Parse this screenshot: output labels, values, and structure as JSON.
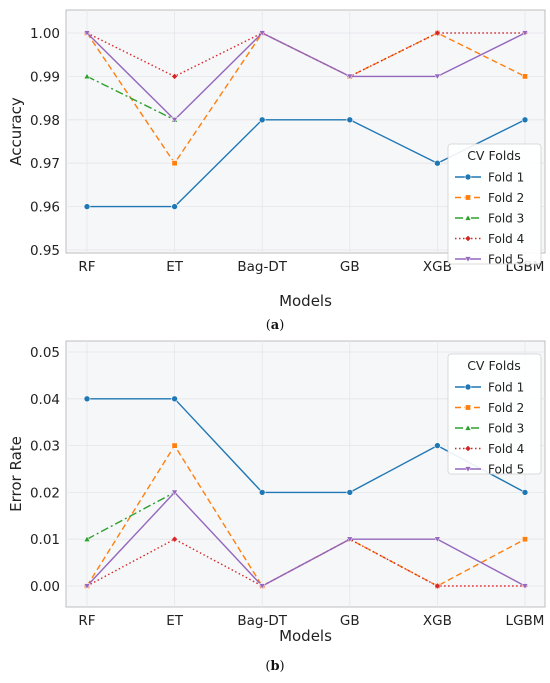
{
  "chart_data": [
    {
      "type": "line",
      "caption": "a",
      "xlabel": "Models",
      "ylabel": "Accuracy",
      "categories": [
        "RF",
        "ET",
        "Bag-DT",
        "GB",
        "XGB",
        "LGBM"
      ],
      "ylim": [
        0.95,
        1.0
      ],
      "yticks": [
        "0.95",
        "0.96",
        "0.97",
        "0.98",
        "0.99",
        "1.00"
      ],
      "grid": true,
      "legend": {
        "title": "CV Folds",
        "placement": "lower-right"
      },
      "series": [
        {
          "name": "Fold 1",
          "values": [
            0.96,
            0.96,
            0.98,
            0.98,
            0.97,
            0.98
          ],
          "color": "#1f77b4",
          "dash": "solid",
          "marker": "circle"
        },
        {
          "name": "Fold 2",
          "values": [
            1.0,
            0.97,
            1.0,
            0.99,
            1.0,
            0.99
          ],
          "color": "#ff7f0e",
          "dash": "dashed",
          "marker": "square"
        },
        {
          "name": "Fold 3",
          "values": [
            0.99,
            0.98,
            null,
            null,
            null,
            null
          ],
          "color": "#2ca02c",
          "dash": "dashdot",
          "marker": "triangle"
        },
        {
          "name": "Fold 4",
          "values": [
            1.0,
            0.99,
            1.0,
            0.99,
            1.0,
            1.0
          ],
          "color": "#d62728",
          "dash": "dotted",
          "marker": "diamond"
        },
        {
          "name": "Fold 5",
          "values": [
            1.0,
            0.98,
            1.0,
            0.99,
            0.99,
            1.0
          ],
          "color": "#9467bd",
          "dash": "solid",
          "marker": "triangle-down"
        }
      ]
    },
    {
      "type": "line",
      "caption": "b",
      "xlabel": "Models",
      "ylabel": "Error Rate",
      "categories": [
        "RF",
        "ET",
        "Bag-DT",
        "GB",
        "XGB",
        "LGBM"
      ],
      "ylim": [
        -0.005,
        0.05
      ],
      "yticks": [
        "0.00",
        "0.01",
        "0.02",
        "0.03",
        "0.04",
        "0.05"
      ],
      "grid": true,
      "legend": {
        "title": "CV Folds",
        "placement": "upper-right"
      },
      "series": [
        {
          "name": "Fold 1",
          "values": [
            0.04,
            0.04,
            0.02,
            0.02,
            0.03,
            0.02
          ],
          "color": "#1f77b4",
          "dash": "solid",
          "marker": "circle"
        },
        {
          "name": "Fold 2",
          "values": [
            0.0,
            0.03,
            0.0,
            0.01,
            0.0,
            0.01
          ],
          "color": "#ff7f0e",
          "dash": "dashed",
          "marker": "square"
        },
        {
          "name": "Fold 3",
          "values": [
            0.01,
            0.02,
            null,
            null,
            null,
            null
          ],
          "color": "#2ca02c",
          "dash": "dashdot",
          "marker": "triangle"
        },
        {
          "name": "Fold 4",
          "values": [
            0.0,
            0.01,
            0.0,
            0.01,
            0.0,
            0.0
          ],
          "color": "#d62728",
          "dash": "dotted",
          "marker": "diamond"
        },
        {
          "name": "Fold 5",
          "values": [
            0.0,
            0.02,
            0.0,
            0.01,
            0.01,
            0.0
          ],
          "color": "#9467bd",
          "dash": "solid",
          "marker": "triangle-down"
        }
      ]
    }
  ],
  "colors": {
    "plot_background": "#f6f7f9",
    "grid": "#e4e6ea",
    "axis": "#b0b0b0"
  }
}
